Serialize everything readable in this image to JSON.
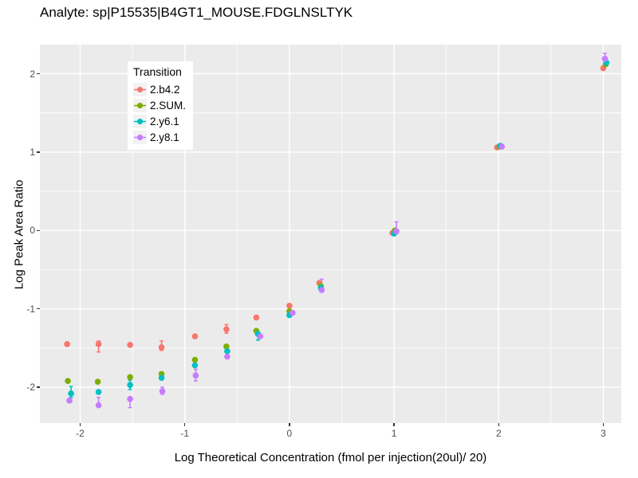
{
  "title": "Analyte: sp|P15535|B4GT1_MOUSE.FDGLNSLTYK",
  "chart_data": {
    "type": "scatter",
    "title": "Analyte: sp|P15535|B4GT1_MOUSE.FDGLNSLTYK",
    "xlabel": "Log Theoretical Concentration (fmol per injection(20ul)/ 20)",
    "ylabel": "Log Peak Area Ratio",
    "legend_title": "Transition",
    "legend_position": "inside-top-left",
    "grid": "major-and-minor-white-on-gray",
    "panel_bg": "#EBEBEB",
    "grid_color": "#FFFFFF",
    "xlim": [
      -2.39,
      3.17
    ],
    "ylim": [
      -2.46,
      2.37
    ],
    "x_ticks": [
      -2,
      -1,
      0,
      1,
      2,
      3
    ],
    "y_ticks": [
      2,
      1,
      0,
      -1,
      -2
    ],
    "x_minor": [
      -1.5,
      -0.5,
      0.5,
      1.5,
      2.5
    ],
    "y_minor": [
      1.5,
      0.5,
      -0.5,
      -1.5
    ],
    "x": [
      -2.125,
      -1.824,
      -1.523,
      -1.222,
      -0.903,
      -0.602,
      -0.301,
      0,
      0.301,
      1,
      2,
      3
    ],
    "series": [
      {
        "name": "2.b4.2",
        "color": "#F8766D",
        "points": [
          {
            "y": -1.45,
            "err": null,
            "dx": 0
          },
          {
            "y": -1.45,
            "err": [
              -1.55,
              -1.41
            ],
            "dx": 0
          },
          {
            "y": -1.46,
            "err": null,
            "dx": 0
          },
          {
            "y": -1.49,
            "err": [
              -1.53,
              -1.41
            ],
            "dx": 0
          },
          {
            "y": -1.35,
            "err": null,
            "dx": 0
          },
          {
            "y": -1.26,
            "err": [
              -1.31,
              -1.2
            ],
            "dx": 0
          },
          {
            "y": -1.11,
            "err": null,
            "dx": -2
          },
          {
            "y": -0.96,
            "err": null,
            "dx": 0
          },
          {
            "y": -0.67,
            "err": null,
            "dx": -2
          },
          {
            "y": -0.03,
            "err": null,
            "dx": -2
          },
          {
            "y": 1.06,
            "err": null,
            "dx": -2
          },
          {
            "y": 2.07,
            "err": null,
            "dx": 0
          }
        ]
      },
      {
        "name": "2.SUM.",
        "color": "#7CAE00",
        "points": [
          {
            "y": -1.92,
            "err": null,
            "dx": 1
          },
          {
            "y": -1.93,
            "err": null,
            "dx": -1
          },
          {
            "y": -1.87,
            "err": null,
            "dx": 0
          },
          {
            "y": -1.83,
            "err": null,
            "dx": 0
          },
          {
            "y": -1.65,
            "err": null,
            "dx": 0
          },
          {
            "y": -1.48,
            "err": null,
            "dx": 0
          },
          {
            "y": -1.28,
            "err": null,
            "dx": -2
          },
          {
            "y": -1.03,
            "err": null,
            "dx": 0
          },
          {
            "y": -0.71,
            "err": null,
            "dx": 0
          },
          {
            "y": 0.0,
            "err": null,
            "dx": 1
          },
          {
            "y": 1.07,
            "err": null,
            "dx": 1
          },
          {
            "y": 2.12,
            "err": null,
            "dx": 3
          }
        ]
      },
      {
        "name": "2.y6.1",
        "color": "#00BFC4",
        "points": [
          {
            "y": -2.08,
            "err": [
              -2.13,
              -1.99
            ],
            "dx": 5
          },
          {
            "y": -2.06,
            "err": null,
            "dx": 0
          },
          {
            "y": -1.97,
            "err": [
              -2.03,
              -1.91
            ],
            "dx": 0
          },
          {
            "y": -1.88,
            "err": null,
            "dx": 0
          },
          {
            "y": -1.72,
            "err": null,
            "dx": 0
          },
          {
            "y": -1.54,
            "err": null,
            "dx": 1
          },
          {
            "y": -1.32,
            "err": [
              -1.4,
              -1.31
            ],
            "dx": 0
          },
          {
            "y": -1.08,
            "err": null,
            "dx": 0
          },
          {
            "y": -0.73,
            "err": null,
            "dx": 0
          },
          {
            "y": -0.04,
            "err": null,
            "dx": 0
          },
          {
            "y": 1.08,
            "err": null,
            "dx": 2
          },
          {
            "y": 2.14,
            "err": null,
            "dx": 4
          }
        ]
      },
      {
        "name": "2.y8.1",
        "color": "#C77CFF",
        "points": [
          {
            "y": -2.17,
            "err": null,
            "dx": 3
          },
          {
            "y": -2.23,
            "err": [
              -2.25,
              -2.13
            ],
            "dx": 0
          },
          {
            "y": -2.15,
            "err": [
              -2.26,
              -2.13
            ],
            "dx": 0
          },
          {
            "y": -2.05,
            "err": [
              -2.09,
              -2.0
            ],
            "dx": 1
          },
          {
            "y": -1.85,
            "err": [
              -1.92,
              -1.77
            ],
            "dx": 1
          },
          {
            "y": -1.61,
            "err": null,
            "dx": 1
          },
          {
            "y": -1.35,
            "err": null,
            "dx": 3
          },
          {
            "y": -1.05,
            "err": null,
            "dx": 4
          },
          {
            "y": -0.76,
            "err": [
              -0.78,
              -0.62
            ],
            "dx": 1
          },
          {
            "y": -0.01,
            "err": [
              -0.04,
              0.11
            ],
            "dx": 3
          },
          {
            "y": 1.07,
            "err": null,
            "dx": 4
          },
          {
            "y": 2.19,
            "err": [
              2.14,
              2.26
            ],
            "dx": 2
          }
        ]
      }
    ]
  }
}
